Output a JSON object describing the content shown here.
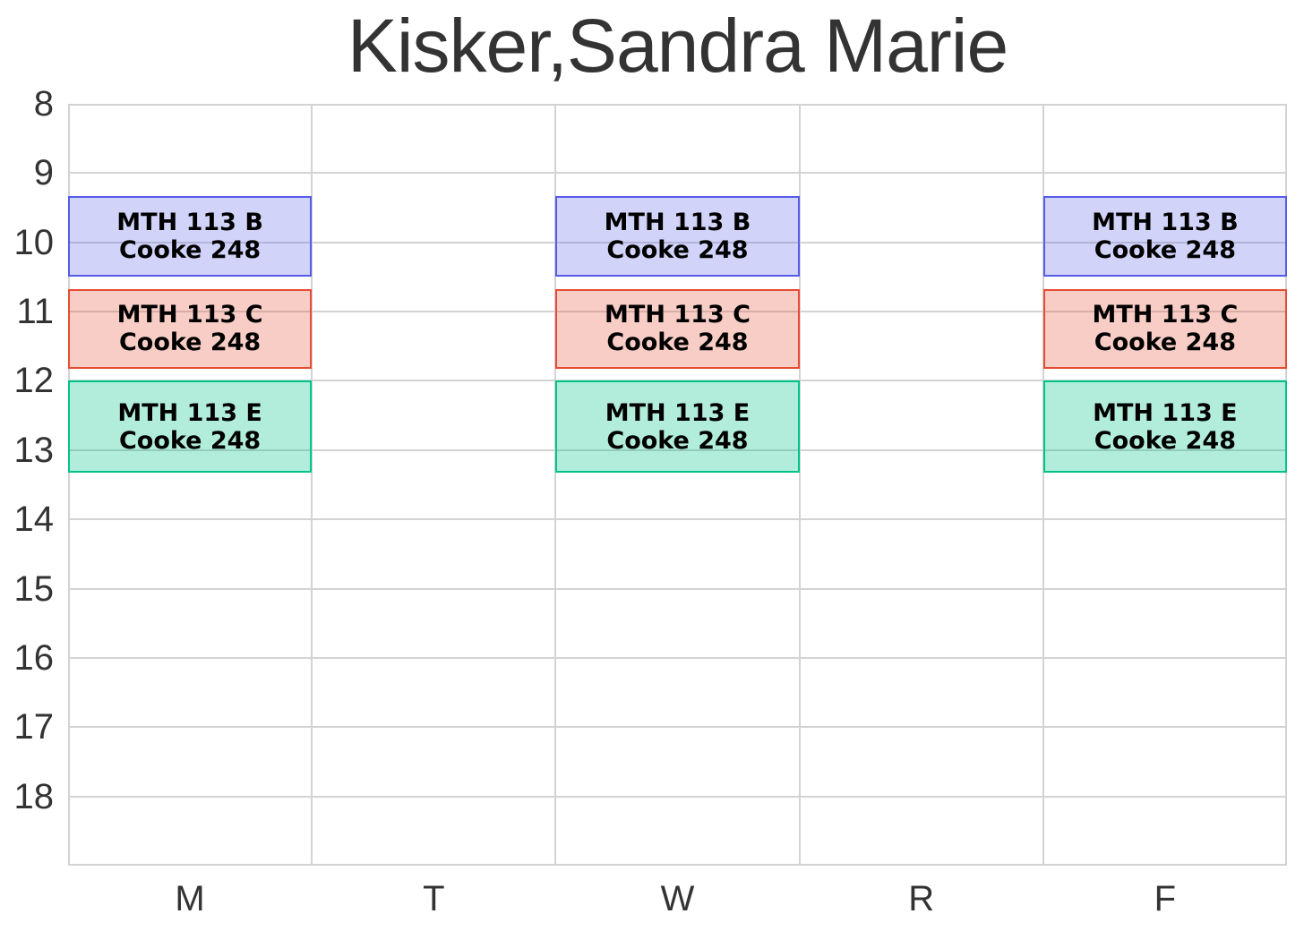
{
  "title": "Kisker,Sandra Marie",
  "colors": {
    "background": "#ffffff",
    "gridline": "#d3d3d3",
    "axis_text": "#333333",
    "block_text": "#000000",
    "blue_border": "#555ce5",
    "blue_fill": "rgba(85,92,229,0.27)",
    "red_border": "#e74c33",
    "red_fill": "rgba(231,76,51,0.28)",
    "green_border": "#00c389",
    "green_fill": "rgba(0,195,137,0.30)"
  },
  "chart_data": {
    "type": "bar",
    "subtype": "weekly-schedule-gantt",
    "title": "Kisker,Sandra Marie",
    "x_categories": [
      "M",
      "T",
      "W",
      "R",
      "F"
    ],
    "y_ticks": [
      "8",
      "9",
      "10",
      "11",
      "12",
      "13",
      "14",
      "15",
      "16",
      "17",
      "18"
    ],
    "y_range": [
      8,
      19
    ],
    "y_axis_inverted": true,
    "grid": true,
    "legend": false,
    "events": [
      {
        "course": "MTH 113 B",
        "room": "Cooke 248",
        "days": [
          "M",
          "W",
          "F"
        ],
        "start_hour": 9.33,
        "end_hour": 10.5,
        "border_color": "#555ce5",
        "fill_color": "rgba(85,92,229,0.27)"
      },
      {
        "course": "MTH 113 C",
        "room": "Cooke 248",
        "days": [
          "M",
          "W",
          "F"
        ],
        "start_hour": 10.67,
        "end_hour": 11.83,
        "border_color": "#e74c33",
        "fill_color": "rgba(231,76,51,0.28)"
      },
      {
        "course": "MTH 113 E",
        "room": "Cooke 248",
        "days": [
          "M",
          "W",
          "F"
        ],
        "start_hour": 12.0,
        "end_hour": 13.33,
        "border_color": "#00c389",
        "fill_color": "rgba(0,195,137,0.30)"
      }
    ]
  }
}
